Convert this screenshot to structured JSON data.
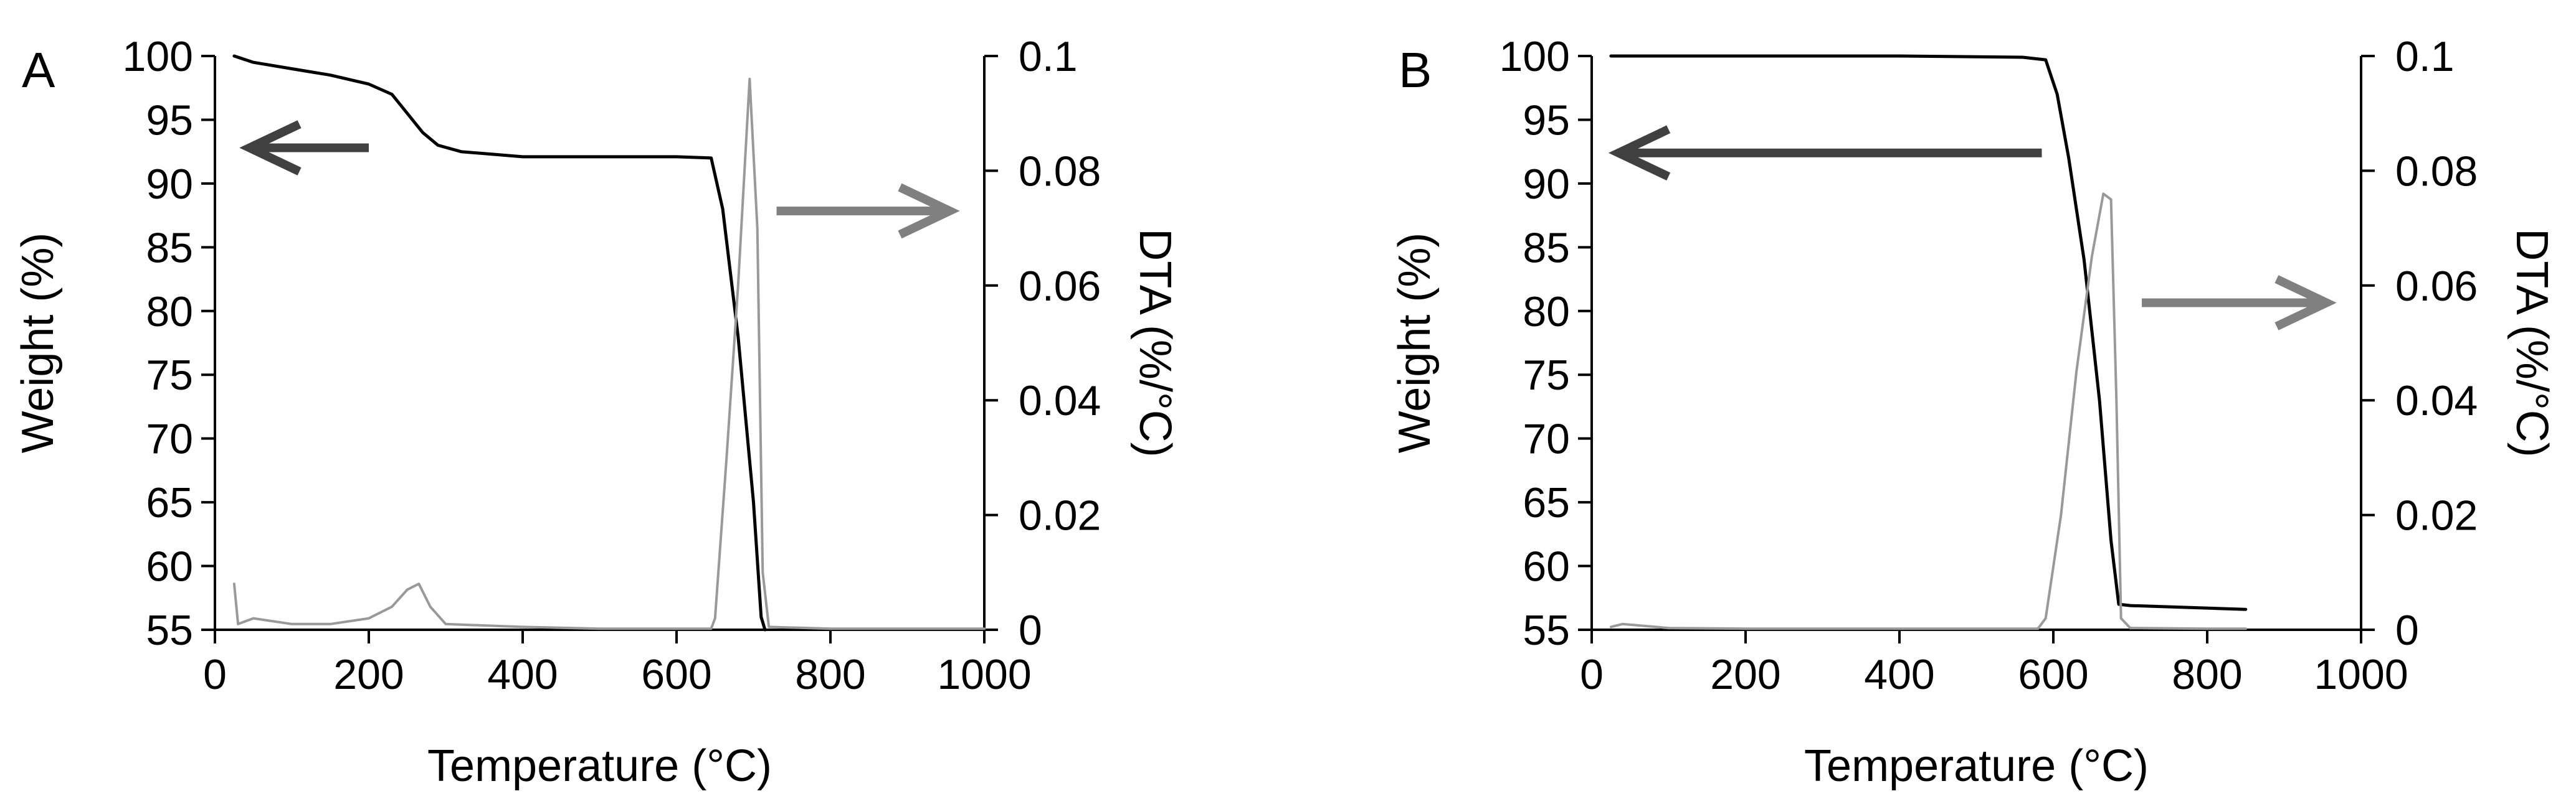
{
  "chart_data": [
    {
      "type": "line",
      "panel_label": "A",
      "xlabel": "Temperature (°C)",
      "ylabel": "Weight (%)",
      "y2label": "DTA (%/°C)",
      "xlim": [
        0,
        1000
      ],
      "ylim": [
        55,
        100
      ],
      "y2lim": [
        0,
        0.1
      ],
      "xticks": [
        "0",
        "200",
        "400",
        "600",
        "800",
        "1000"
      ],
      "yticks": [
        "55",
        "60",
        "65",
        "70",
        "75",
        "80",
        "85",
        "90",
        "95",
        "100"
      ],
      "y2ticks": [
        "0",
        "0.02",
        "0.04",
        "0.06",
        "0.08",
        "0.1"
      ],
      "colors": {
        "weight": "#000000",
        "dta": "#999999",
        "arrow_left": "#404040",
        "arrow_right": "#808080"
      },
      "series": [
        {
          "key": "weight",
          "axis": "left",
          "points": [
            [
              25,
              100
            ],
            [
              50,
              99.5
            ],
            [
              100,
              99
            ],
            [
              150,
              98.5
            ],
            [
              200,
              97.8
            ],
            [
              230,
              97
            ],
            [
              250,
              95.5
            ],
            [
              270,
              94
            ],
            [
              290,
              93
            ],
            [
              320,
              92.5
            ],
            [
              400,
              92.1
            ],
            [
              500,
              92.1
            ],
            [
              600,
              92.1
            ],
            [
              645,
              92
            ],
            [
              660,
              88
            ],
            [
              680,
              78
            ],
            [
              700,
              65
            ],
            [
              710,
              56
            ],
            [
              715,
              55
            ]
          ]
        },
        {
          "key": "dta",
          "axis": "right",
          "points": [
            [
              25,
              0.008
            ],
            [
              30,
              0.001
            ],
            [
              50,
              0.002
            ],
            [
              100,
              0.001
            ],
            [
              150,
              0.001
            ],
            [
              200,
              0.002
            ],
            [
              230,
              0.004
            ],
            [
              250,
              0.007
            ],
            [
              265,
              0.008
            ],
            [
              280,
              0.004
            ],
            [
              300,
              0.001
            ],
            [
              400,
              0.0005
            ],
            [
              500,
              0.0002
            ],
            [
              600,
              0.0002
            ],
            [
              645,
              0.0002
            ],
            [
              650,
              0.002
            ],
            [
              665,
              0.03
            ],
            [
              680,
              0.06
            ],
            [
              695,
              0.096
            ],
            [
              705,
              0.07
            ],
            [
              712,
              0.01
            ],
            [
              720,
              0.0005
            ],
            [
              800,
              0.0002
            ],
            [
              900,
              0.0002
            ],
            [
              1000,
              0.0002
            ]
          ]
        }
      ],
      "arrows": [
        {
          "key": "arrow_left",
          "from": [
            200,
            92.8
          ],
          "to": [
            45,
            92.8
          ]
        },
        {
          "key": "arrow_right",
          "from": [
            730,
            0.073
          ],
          "to": [
            955,
            0.073
          ]
        }
      ]
    },
    {
      "type": "line",
      "panel_label": "B",
      "xlabel": "Temperature (°C)",
      "ylabel": "Weight (%)",
      "y2label": "DTA (%/°C)",
      "xlim": [
        0,
        1000
      ],
      "ylim": [
        55,
        100
      ],
      "y2lim": [
        0,
        0.1
      ],
      "xticks": [
        "0",
        "200",
        "400",
        "600",
        "800",
        "1000"
      ],
      "yticks": [
        "55",
        "60",
        "65",
        "70",
        "75",
        "80",
        "85",
        "90",
        "95",
        "100"
      ],
      "y2ticks": [
        "0",
        "0.02",
        "0.04",
        "0.06",
        "0.08",
        "0.1"
      ],
      "colors": {
        "weight": "#000000",
        "dta": "#999999",
        "arrow_left": "#404040",
        "arrow_right": "#808080"
      },
      "series": [
        {
          "key": "weight",
          "axis": "left",
          "points": [
            [
              25,
              100
            ],
            [
              200,
              100
            ],
            [
              400,
              100
            ],
            [
              560,
              99.9
            ],
            [
              590,
              99.7
            ],
            [
              605,
              97
            ],
            [
              620,
              92
            ],
            [
              640,
              84
            ],
            [
              660,
              73
            ],
            [
              675,
              62
            ],
            [
              685,
              57
            ],
            [
              700,
              56.9
            ],
            [
              850,
              56.6
            ]
          ]
        },
        {
          "key": "dta",
          "axis": "right",
          "points": [
            [
              25,
              0.0005
            ],
            [
              40,
              0.001
            ],
            [
              100,
              0.0003
            ],
            [
              200,
              0.0002
            ],
            [
              400,
              0.0002
            ],
            [
              580,
              0.0002
            ],
            [
              590,
              0.002
            ],
            [
              610,
              0.02
            ],
            [
              630,
              0.045
            ],
            [
              650,
              0.065
            ],
            [
              665,
              0.076
            ],
            [
              675,
              0.075
            ],
            [
              682,
              0.04
            ],
            [
              688,
              0.002
            ],
            [
              700,
              0.0003
            ],
            [
              800,
              0.0002
            ],
            [
              850,
              0.0002
            ]
          ]
        }
      ],
      "arrows": [
        {
          "key": "arrow_left",
          "from": [
            585,
            92.4
          ],
          "to": [
            35,
            92.4
          ]
        },
        {
          "key": "arrow_right",
          "from": [
            715,
            0.057
          ],
          "to": [
            955,
            0.057
          ]
        }
      ]
    }
  ]
}
